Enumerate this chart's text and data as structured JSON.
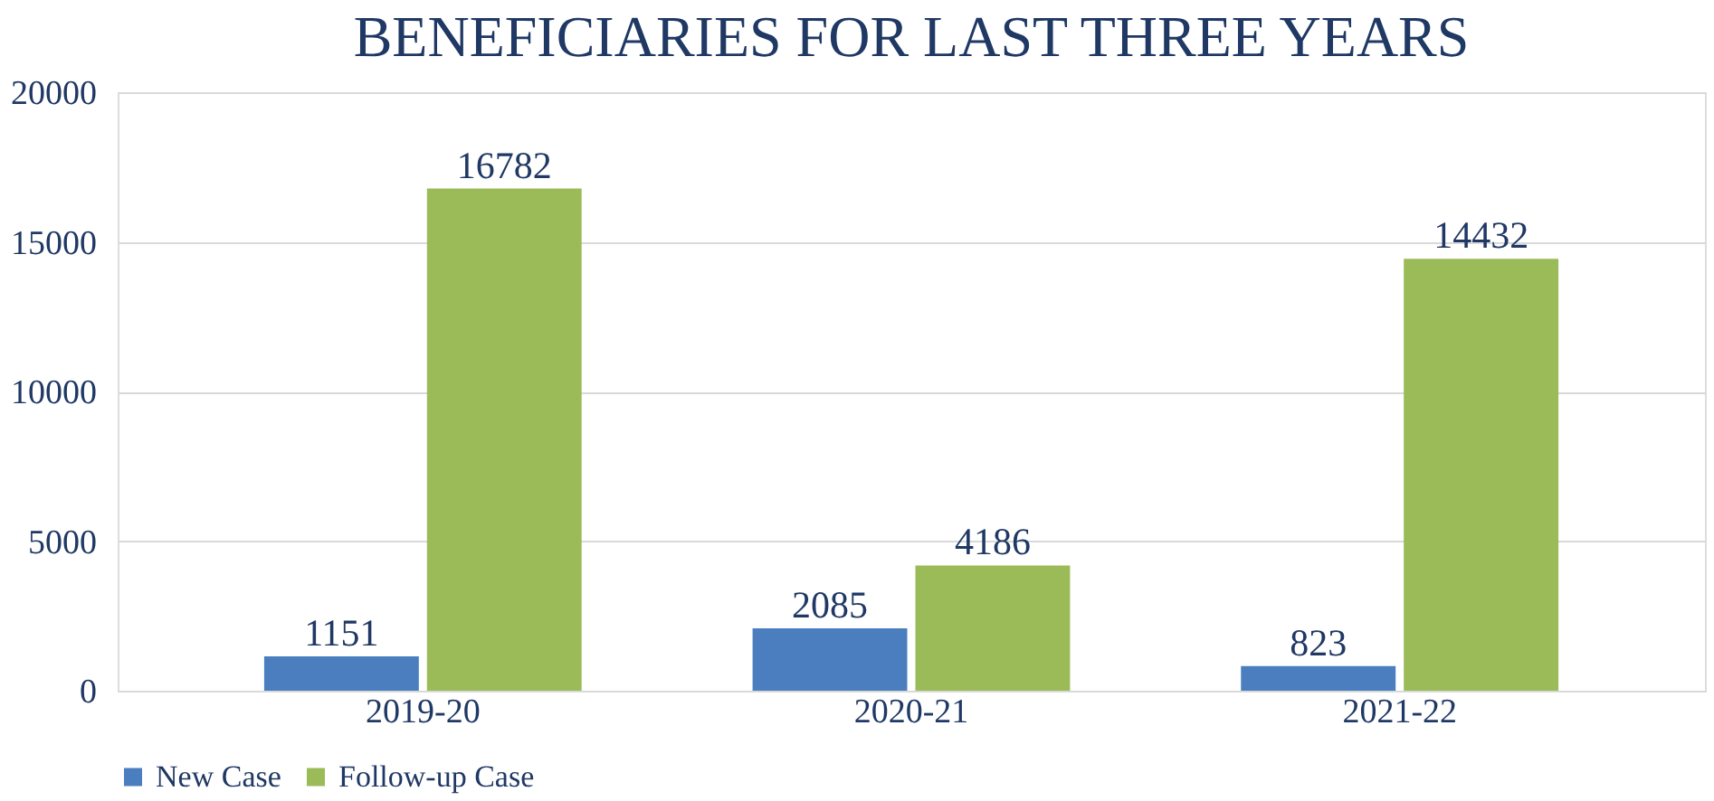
{
  "chart_data": {
    "type": "bar",
    "title": "BENEFICIARIES FOR LAST THREE YEARS",
    "categories": [
      "2019-20",
      "2020-21",
      "2021-22"
    ],
    "series": [
      {
        "name": "New Case",
        "color": "#4a7ebf",
        "values": [
          1151,
          2085,
          823
        ]
      },
      {
        "name": "Follow-up Case",
        "color": "#9bbb59",
        "values": [
          16782,
          4186,
          14432
        ]
      }
    ],
    "ylim": [
      0,
      20000
    ],
    "yticks": [
      0,
      5000,
      10000,
      15000,
      20000
    ],
    "grid": "y",
    "legend": "bottom",
    "data_labels": true
  }
}
